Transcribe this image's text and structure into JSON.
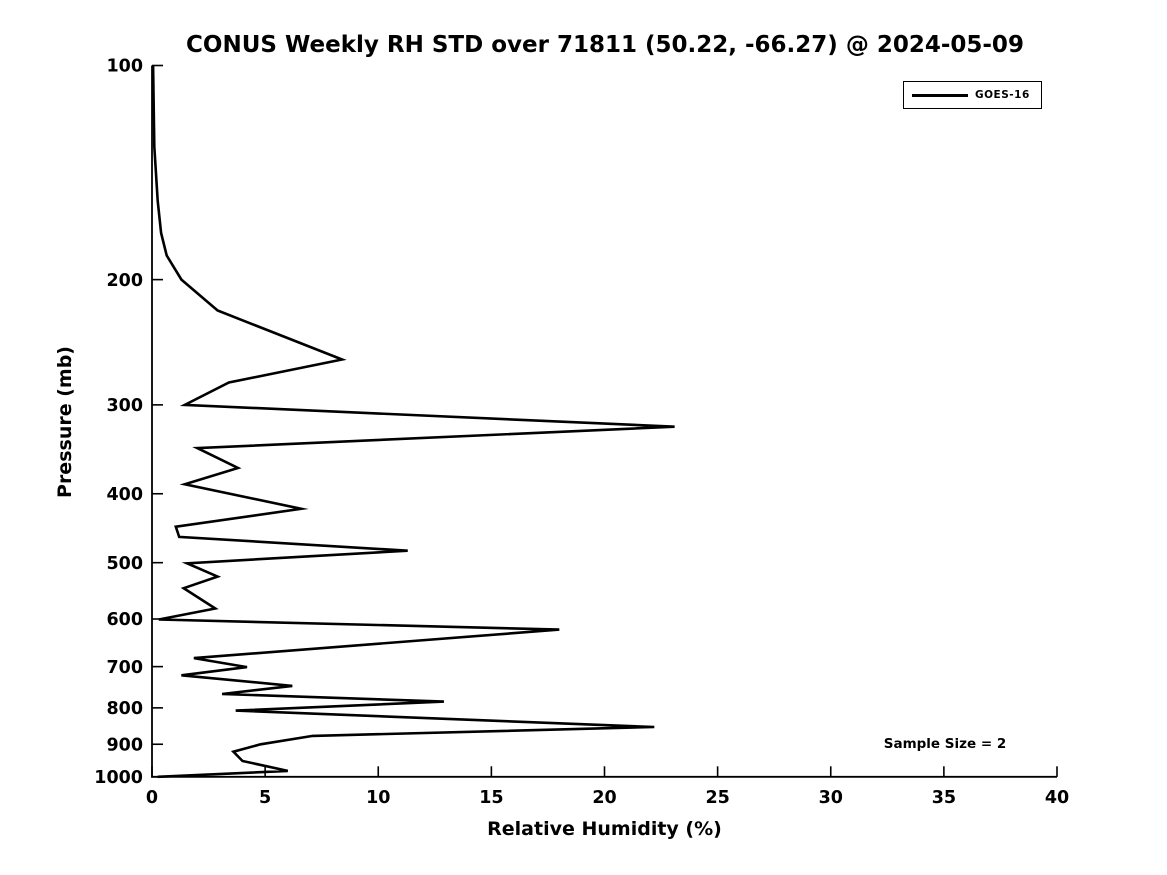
{
  "figure": {
    "background": "#ffffff",
    "foreground": "#000000"
  },
  "chart_data": {
    "type": "line",
    "title": "CONUS Weekly RH STD over 71811 (50.22, -66.27) @ 2024-05-09",
    "xlabel": "Relative Humidity (%)",
    "ylabel": "Pressure (mb)",
    "xlim": [
      0,
      40
    ],
    "ylim": [
      1000,
      100
    ],
    "yscale": "log",
    "grid": false,
    "x_ticks": [
      0,
      5,
      10,
      15,
      20,
      25,
      30,
      35,
      40
    ],
    "y_ticks": [
      100,
      200,
      300,
      400,
      500,
      600,
      700,
      800,
      900,
      1000
    ],
    "legend": {
      "position": "top-right",
      "entries": [
        {
          "label": "GOES-16",
          "color": "#000000",
          "style": "solid"
        }
      ]
    },
    "annotations": [
      {
        "text": "Sample Size = 2",
        "position": "right-bottom"
      }
    ],
    "series": [
      {
        "name": "GOES-16",
        "color": "#000000",
        "units": {
          "x": "percent RH std",
          "y": "pressure mb"
        },
        "points": [
          [
            100,
            0.05
          ],
          [
            130,
            0.1
          ],
          [
            155,
            0.25
          ],
          [
            172,
            0.4
          ],
          [
            185,
            0.65
          ],
          [
            200,
            1.3
          ],
          [
            221,
            2.9
          ],
          [
            259,
            8.4
          ],
          [
            279,
            3.4
          ],
          [
            300,
            1.45
          ],
          [
            322,
            23.1
          ],
          [
            345,
            2.0
          ],
          [
            368,
            3.8
          ],
          [
            388,
            1.45
          ],
          [
            420,
            6.6
          ],
          [
            445,
            1.05
          ],
          [
            460,
            1.2
          ],
          [
            481,
            11.3
          ],
          [
            501,
            1.55
          ],
          [
            523,
            2.9
          ],
          [
            543,
            1.4
          ],
          [
            580,
            2.8
          ],
          [
            601,
            0.3
          ],
          [
            621,
            18.0
          ],
          [
            681,
            1.85
          ],
          [
            701,
            4.2
          ],
          [
            720,
            1.3
          ],
          [
            745,
            6.2
          ],
          [
            765,
            3.1
          ],
          [
            784,
            12.9
          ],
          [
            807,
            3.7
          ],
          [
            851,
            22.2
          ],
          [
            876,
            7.1
          ],
          [
            900,
            4.8
          ],
          [
            922,
            3.6
          ],
          [
            950,
            4.0
          ],
          [
            981,
            6.0
          ],
          [
            1000,
            0.25
          ]
        ]
      }
    ]
  }
}
